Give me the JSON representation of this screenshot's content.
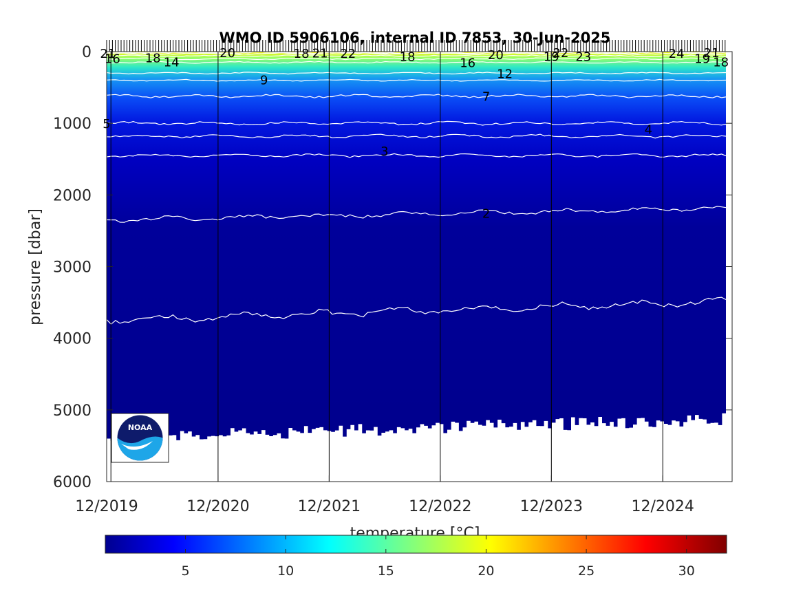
{
  "chart_data": [
    {
      "type": "heatmap",
      "title": "WMO ID 5906106, internal ID 7853, 30-Jun-2025",
      "ylabel": "pressure [dbar]",
      "xlabel": "",
      "ylim": [
        0,
        6000
      ],
      "y_reversed": true,
      "xlim": [
        "2019-12-01",
        "2025-07-01"
      ],
      "x_ticks": [
        "12/2019",
        "12/2020",
        "12/2021",
        "12/2022",
        "12/2023",
        "12/2024"
      ],
      "y_ticks": [
        0,
        1000,
        2000,
        3000,
        4000,
        5000,
        6000
      ],
      "colormap": "jet",
      "vertical_reference_lines": [
        "12/2019",
        "12/2020",
        "12/2021",
        "12/2022",
        "12/2023",
        "12/2024"
      ],
      "contours": [
        {
          "temperature": 2,
          "pressure": 2350
        },
        {
          "temperature": 3,
          "pressure": 1450
        },
        {
          "temperature": 4,
          "pressure": 1180
        },
        {
          "temperature": 5,
          "pressure": 1000
        },
        {
          "temperature": 7,
          "pressure": 620
        },
        {
          "temperature": 9,
          "pressure": 400
        },
        {
          "temperature": 12,
          "pressure": 300
        },
        {
          "temperature": 14,
          "pressure": 150
        },
        {
          "temperature": 16,
          "pressure": 100
        },
        {
          "temperature": 18,
          "pressure": 60
        },
        {
          "temperature": 20,
          "pressure": 30
        },
        {
          "temperature": 22,
          "pressure": 15
        },
        {
          "temperature": 24,
          "pressure": 5
        },
        {
          "temperature": 2,
          "pressure": 3750
        }
      ],
      "contour_labels": [
        {
          "text": "2",
          "date": "2023-05-01",
          "pressure": 2250
        },
        {
          "text": "3",
          "date": "2022-06-01",
          "pressure": 1380
        },
        {
          "text": "4",
          "date": "2024-10-15",
          "pressure": 1080
        },
        {
          "text": "5",
          "date": "2019-12-01",
          "pressure": 1000
        },
        {
          "text": "7",
          "date": "2023-05-01",
          "pressure": 620
        },
        {
          "text": "9",
          "date": "2021-05-01",
          "pressure": 390
        },
        {
          "text": "12",
          "date": "2023-07-01",
          "pressure": 300
        },
        {
          "text": "14",
          "date": "2020-07-01",
          "pressure": 140
        },
        {
          "text": "16",
          "date": "2019-12-20",
          "pressure": 90
        },
        {
          "text": "16",
          "date": "2023-03-01",
          "pressure": 150
        },
        {
          "text": "18",
          "date": "2020-05-01",
          "pressure": 80
        },
        {
          "text": "18",
          "date": "2021-09-01",
          "pressure": 20
        },
        {
          "text": "18",
          "date": "2022-08-15",
          "pressure": 60
        },
        {
          "text": "18",
          "date": "2025-06-10",
          "pressure": 140
        },
        {
          "text": "19",
          "date": "2023-12-01",
          "pressure": 60
        },
        {
          "text": "19",
          "date": "2025-04-10",
          "pressure": 90
        },
        {
          "text": "20",
          "date": "2021-01-01",
          "pressure": 10
        },
        {
          "text": "20",
          "date": "2023-06-01",
          "pressure": 40
        },
        {
          "text": "21",
          "date": "2019-12-05",
          "pressure": 20
        },
        {
          "text": "21",
          "date": "2025-05-10",
          "pressure": 10
        },
        {
          "text": "21",
          "date": "2021-11-01",
          "pressure": 15
        },
        {
          "text": "22",
          "date": "2022-02-01",
          "pressure": 20
        },
        {
          "text": "22",
          "date": "2024-01-01",
          "pressure": 10
        },
        {
          "text": "23",
          "date": "2024-03-15",
          "pressure": 60
        },
        {
          "text": "24",
          "date": "2025-01-15",
          "pressure": 20
        }
      ],
      "bottom_pressure_range": [
        5000,
        5600
      ]
    },
    {
      "type": "heatmap",
      "colorbar": true,
      "xlabel": "temperature [°C]",
      "xlim": [
        1,
        32
      ],
      "x_ticks": [
        5,
        10,
        15,
        20,
        25,
        30
      ],
      "colormap": "jet"
    }
  ],
  "logo": {
    "text": "NOAA",
    "bg_color": "#0e1b6b",
    "wave_color": "#1ea6e8"
  }
}
